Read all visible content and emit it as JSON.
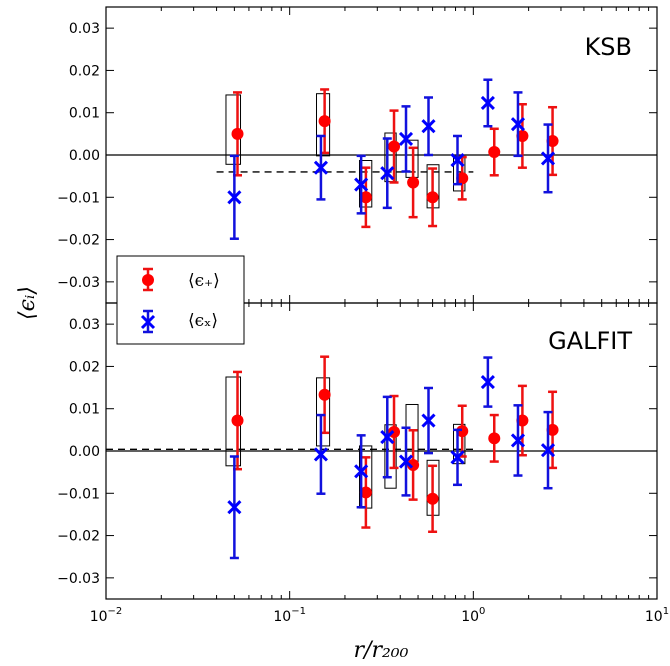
{
  "chart_data": [
    {
      "type": "scatter",
      "panel_label": "KSB",
      "xscale": "log",
      "xlim": [
        0.01,
        10
      ],
      "ylim": [
        -0.035,
        0.035
      ],
      "yticks": [
        "0.03",
        "0.02",
        "0.01",
        "0.00",
        "−0.01",
        "−0.02",
        "−0.03"
      ],
      "ytick_values": [
        0.03,
        0.02,
        0.01,
        0.0,
        -0.01,
        -0.02,
        -0.03
      ],
      "reference_lines": [
        {
          "y": 0.0,
          "style": "solid"
        },
        {
          "y": -0.004,
          "style": "dashed",
          "x_range": [
            0.04,
            1.0
          ]
        }
      ],
      "boxes": [
        {
          "x0": 0.045,
          "x1": 0.054,
          "y0": -0.0022,
          "y1": 0.0142
        },
        {
          "x0": 0.14,
          "x1": 0.165,
          "y0": -0.0002,
          "y1": 0.0145
        },
        {
          "x0": 0.24,
          "x1": 0.28,
          "y0": -0.0123,
          "y1": -0.0013
        },
        {
          "x0": 0.33,
          "x1": 0.38,
          "y0": -0.0063,
          "y1": 0.0052
        },
        {
          "x0": 0.43,
          "x1": 0.5,
          "y0": -0.0053,
          "y1": 0.0035
        },
        {
          "x0": 0.56,
          "x1": 0.65,
          "y0": -0.0125,
          "y1": -0.0023
        },
        {
          "x0": 0.78,
          "x1": 0.9,
          "y0": -0.0085,
          "y1": -0.0003
        }
      ],
      "series": [
        {
          "name": "⟨ϵ₊⟩",
          "marker": "circle",
          "color": "#ff0000",
          "errcolor": "#ee1111",
          "points": [
            {
              "x": 0.052,
              "y": 0.005,
              "err": 0.0098
            },
            {
              "x": 0.155,
              "y": 0.008,
              "err": 0.0075
            },
            {
              "x": 0.26,
              "y": -0.01,
              "err": 0.007
            },
            {
              "x": 0.37,
              "y": 0.002,
              "err": 0.0085
            },
            {
              "x": 0.47,
              "y": -0.0065,
              "err": 0.0082
            },
            {
              "x": 0.6,
              "y": -0.01,
              "err": 0.0068
            },
            {
              "x": 0.87,
              "y": -0.0055,
              "err": 0.005
            },
            {
              "x": 1.3,
              "y": 0.0007,
              "err": 0.0055
            },
            {
              "x": 1.85,
              "y": 0.0045,
              "err": 0.0075
            },
            {
              "x": 2.7,
              "y": 0.0033,
              "err": 0.008
            }
          ]
        },
        {
          "name": "⟨ϵₓ⟩",
          "marker": "x",
          "color": "#0000ff",
          "errcolor": "#1111dd",
          "points": [
            {
              "x": 0.05,
              "y": -0.01,
              "err": 0.0098
            },
            {
              "x": 0.148,
              "y": -0.003,
              "err": 0.0075
            },
            {
              "x": 0.245,
              "y": -0.007,
              "err": 0.0068
            },
            {
              "x": 0.34,
              "y": -0.0043,
              "err": 0.0082
            },
            {
              "x": 0.43,
              "y": 0.0038,
              "err": 0.0077
            },
            {
              "x": 0.57,
              "y": 0.0068,
              "err": 0.0068
            },
            {
              "x": 0.82,
              "y": -0.0012,
              "err": 0.0057
            },
            {
              "x": 1.2,
              "y": 0.0123,
              "err": 0.0055
            },
            {
              "x": 1.75,
              "y": 0.0073,
              "err": 0.0075
            },
            {
              "x": 2.55,
              "y": -0.0008,
              "err": 0.008
            }
          ]
        }
      ]
    },
    {
      "type": "scatter",
      "panel_label": "GALFIT",
      "xscale": "log",
      "xlim": [
        0.01,
        10
      ],
      "ylim": [
        -0.035,
        0.035
      ],
      "yticks": [
        "0.03",
        "0.02",
        "0.01",
        "0.00",
        "−0.01",
        "−0.02",
        "−0.03"
      ],
      "ytick_values": [
        0.03,
        0.02,
        0.01,
        0.0,
        -0.01,
        -0.02,
        -0.03
      ],
      "reference_lines": [
        {
          "y": 0.0,
          "style": "solid"
        },
        {
          "y": 0.0004,
          "style": "dashed",
          "x_range": [
            0.01,
            1.0
          ]
        }
      ],
      "boxes": [
        {
          "x0": 0.045,
          "x1": 0.054,
          "y0": -0.0035,
          "y1": 0.0175
        },
        {
          "x0": 0.14,
          "x1": 0.165,
          "y0": 0.0012,
          "y1": 0.0173
        },
        {
          "x0": 0.24,
          "x1": 0.28,
          "y0": -0.0135,
          "y1": 0.0012
        },
        {
          "x0": 0.33,
          "x1": 0.38,
          "y0": -0.0088,
          "y1": 0.0062
        },
        {
          "x0": 0.43,
          "x1": 0.5,
          "y0": -0.0035,
          "y1": 0.011
        },
        {
          "x0": 0.56,
          "x1": 0.65,
          "y0": -0.0152,
          "y1": -0.0022
        },
        {
          "x0": 0.78,
          "x1": 0.9,
          "y0": -0.003,
          "y1": 0.0063
        }
      ],
      "series": [
        {
          "name": "⟨ϵ₊⟩",
          "marker": "circle",
          "color": "#ff0000",
          "errcolor": "#ee1111",
          "points": [
            {
              "x": 0.052,
              "y": 0.0072,
              "err": 0.0115
            },
            {
              "x": 0.155,
              "y": 0.0133,
              "err": 0.009
            },
            {
              "x": 0.26,
              "y": -0.0098,
              "err": 0.0083
            },
            {
              "x": 0.37,
              "y": 0.0045,
              "err": 0.0085
            },
            {
              "x": 0.47,
              "y": -0.0033,
              "err": 0.0082
            },
            {
              "x": 0.6,
              "y": -0.0113,
              "err": 0.0078
            },
            {
              "x": 0.87,
              "y": 0.0047,
              "err": 0.006
            },
            {
              "x": 1.3,
              "y": 0.003,
              "err": 0.0055
            },
            {
              "x": 1.85,
              "y": 0.0072,
              "err": 0.0082
            },
            {
              "x": 2.7,
              "y": 0.005,
              "err": 0.009
            }
          ]
        },
        {
          "name": "⟨ϵₓ⟩",
          "marker": "x",
          "color": "#0000ff",
          "errcolor": "#1111dd",
          "points": [
            {
              "x": 0.05,
              "y": -0.0133,
              "err": 0.012
            },
            {
              "x": 0.148,
              "y": -0.0008,
              "err": 0.0093
            },
            {
              "x": 0.245,
              "y": -0.0048,
              "err": 0.0085
            },
            {
              "x": 0.34,
              "y": 0.0033,
              "err": 0.0095
            },
            {
              "x": 0.43,
              "y": -0.0025,
              "err": 0.008
            },
            {
              "x": 0.57,
              "y": 0.0072,
              "err": 0.0077
            },
            {
              "x": 0.82,
              "y": -0.0015,
              "err": 0.0065
            },
            {
              "x": 1.2,
              "y": 0.0163,
              "err": 0.0058
            },
            {
              "x": 1.75,
              "y": 0.0025,
              "err": 0.0083
            },
            {
              "x": 2.55,
              "y": 0.0002,
              "err": 0.009
            }
          ]
        }
      ]
    }
  ],
  "axes": {
    "xlabel": "r/r₂₀₀",
    "ylabel": "⟨ϵᵢ⟩",
    "xtick_values": [
      0.01,
      0.1,
      1,
      10
    ],
    "xticks_base": "10",
    "xticks_exp": [
      "−2",
      "−1",
      "0",
      "1"
    ]
  },
  "legend": {
    "location": "lower-left of top panel",
    "entries": [
      "⟨ϵ₊⟩",
      "⟨ϵₓ⟩"
    ]
  }
}
